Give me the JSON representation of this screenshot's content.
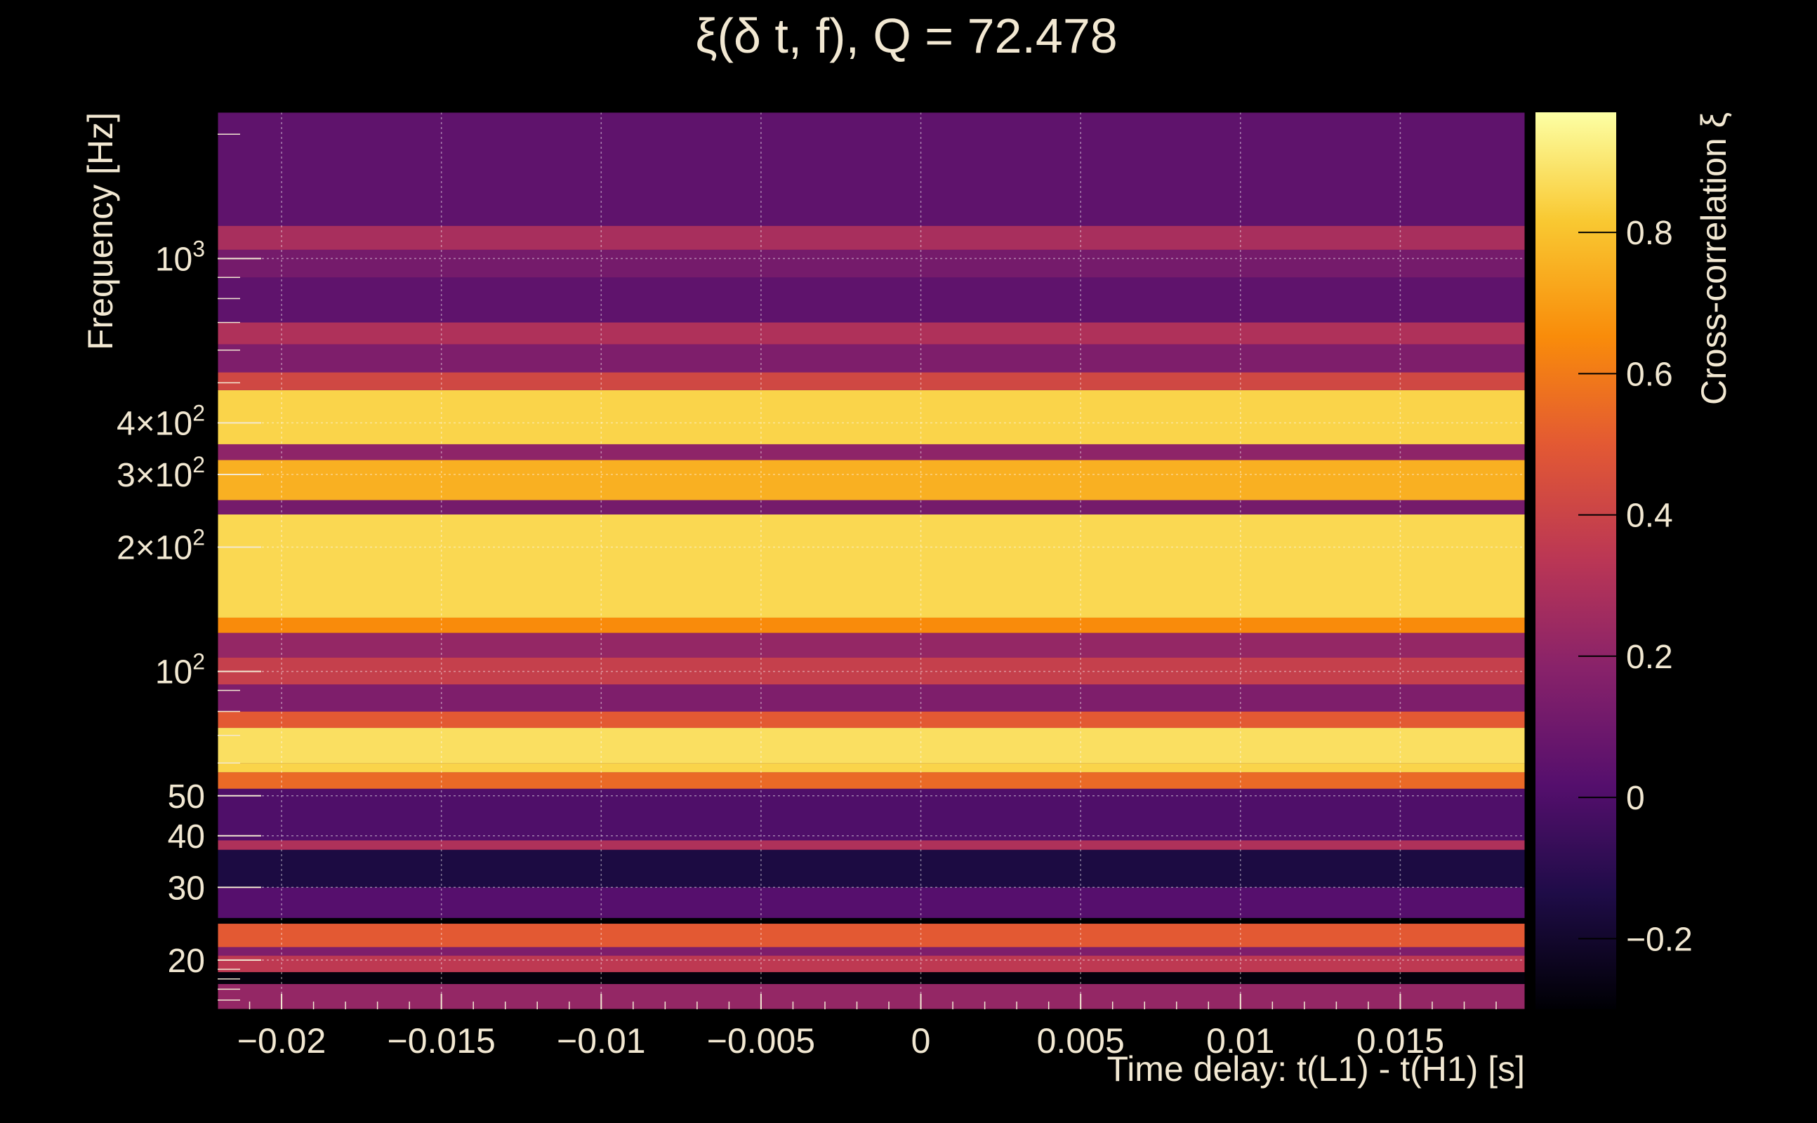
{
  "chart_data": {
    "type": "heatmap",
    "title": "ξ(δ t, f), Q = 72.478",
    "xlabel": "Time delay: t(L1) - t(H1) [s]",
    "ylabel": "Frequency [Hz]",
    "colorbar_label": "Cross-correlation ξ",
    "xlim": [
      -0.022,
      0.0189
    ],
    "ylim": [
      15.2,
      2260
    ],
    "yscale": "log",
    "clim": [
      -0.3,
      0.97
    ],
    "colormap": "inferno",
    "grid": true,
    "x_ticks": [
      {
        "value": -0.02,
        "label": "−0.02"
      },
      {
        "value": -0.015,
        "label": "−0.015"
      },
      {
        "value": -0.01,
        "label": "−0.01"
      },
      {
        "value": -0.005,
        "label": "−0.005"
      },
      {
        "value": 0,
        "label": "0"
      },
      {
        "value": 0.005,
        "label": "0.005"
      },
      {
        "value": 0.01,
        "label": "0.01"
      },
      {
        "value": 0.015,
        "label": "0.015"
      }
    ],
    "y_ticks": [
      {
        "value": 20,
        "base": "20",
        "exp": ""
      },
      {
        "value": 30,
        "base": "30",
        "exp": ""
      },
      {
        "value": 40,
        "base": "40",
        "exp": ""
      },
      {
        "value": 50,
        "base": "50",
        "exp": ""
      },
      {
        "value": 100,
        "base": "10",
        "exp": "2"
      },
      {
        "value": 200,
        "base": "2×10",
        "exp": "2"
      },
      {
        "value": 300,
        "base": "3×10",
        "exp": "2"
      },
      {
        "value": 400,
        "base": "4×10",
        "exp": "2"
      },
      {
        "value": 1000,
        "base": "10",
        "exp": "3"
      }
    ],
    "colorbar_ticks": [
      {
        "value": -0.2,
        "label": "−0.2"
      },
      {
        "value": 0,
        "label": "0"
      },
      {
        "value": 0.2,
        "label": "0.2"
      },
      {
        "value": 0.4,
        "label": "0.4"
      },
      {
        "value": 0.6,
        "label": "0.6"
      },
      {
        "value": 0.8,
        "label": "0.8"
      }
    ],
    "frequency_bands": [
      {
        "f_low": 15.2,
        "f_high": 17.5,
        "xi": 0.22
      },
      {
        "f_low": 17.5,
        "f_high": 18.7,
        "xi": -0.28
      },
      {
        "f_low": 18.7,
        "f_high": 20.5,
        "xi": 0.35
      },
      {
        "f_low": 20.5,
        "f_high": 21.5,
        "xi": 0.15
      },
      {
        "f_low": 21.5,
        "f_high": 24.5,
        "xi": 0.5
      },
      {
        "f_low": 24.5,
        "f_high": 25.3,
        "xi": -0.3
      },
      {
        "f_low": 25.3,
        "f_high": 30,
        "xi": 0.02
      },
      {
        "f_low": 30,
        "f_high": 37,
        "xi": -0.15
      },
      {
        "f_low": 37,
        "f_high": 39,
        "xi": 0.3
      },
      {
        "f_low": 39,
        "f_high": 52,
        "xi": 0.0
      },
      {
        "f_low": 52,
        "f_high": 57,
        "xi": 0.55
      },
      {
        "f_low": 57,
        "f_high": 60,
        "xi": 0.85
      },
      {
        "f_low": 60,
        "f_high": 73,
        "xi": 0.88
      },
      {
        "f_low": 73,
        "f_high": 80,
        "xi": 0.5
      },
      {
        "f_low": 80,
        "f_high": 93,
        "xi": 0.15
      },
      {
        "f_low": 93,
        "f_high": 108,
        "xi": 0.38
      },
      {
        "f_low": 108,
        "f_high": 124,
        "xi": 0.22
      },
      {
        "f_low": 124,
        "f_high": 135,
        "xi": 0.65
      },
      {
        "f_low": 135,
        "f_high": 240,
        "xi": 0.86
      },
      {
        "f_low": 240,
        "f_high": 260,
        "xi": 0.12
      },
      {
        "f_low": 260,
        "f_high": 325,
        "xi": 0.75
      },
      {
        "f_low": 325,
        "f_high": 355,
        "xi": 0.2
      },
      {
        "f_low": 355,
        "f_high": 480,
        "xi": 0.85
      },
      {
        "f_low": 480,
        "f_high": 530,
        "xi": 0.42
      },
      {
        "f_low": 530,
        "f_high": 620,
        "xi": 0.15
      },
      {
        "f_low": 620,
        "f_high": 700,
        "xi": 0.3
      },
      {
        "f_low": 700,
        "f_high": 900,
        "xi": 0.05
      },
      {
        "f_low": 900,
        "f_high": 1050,
        "xi": 0.12
      },
      {
        "f_low": 1050,
        "f_high": 1200,
        "xi": 0.28
      },
      {
        "f_low": 1200,
        "f_high": 2260,
        "xi": 0.05
      }
    ]
  }
}
